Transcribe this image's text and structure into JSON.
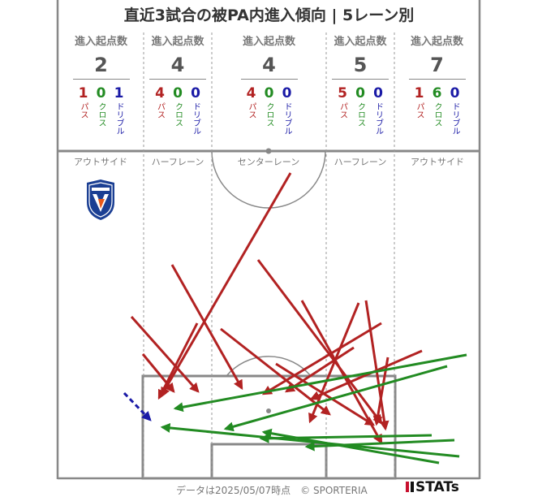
{
  "title": "直近3試合の被PA内進入傾向 | 5レーン別",
  "lanes": [
    {
      "header": "進入起点数",
      "total": "2",
      "pass": "1",
      "cross": "0",
      "dribble": "1",
      "name": "アウトサイド"
    },
    {
      "header": "進入起点数",
      "total": "4",
      "pass": "4",
      "cross": "0",
      "dribble": "0",
      "name": "ハーフレーン"
    },
    {
      "header": "進入起点数",
      "total": "4",
      "pass": "4",
      "cross": "0",
      "dribble": "0",
      "name": "センターレーン"
    },
    {
      "header": "進入起点数",
      "total": "5",
      "pass": "5",
      "cross": "0",
      "dribble": "0",
      "name": "ハーフレーン"
    },
    {
      "header": "進入起点数",
      "total": "7",
      "pass": "1",
      "cross": "6",
      "dribble": "0",
      "name": "アウトサイド"
    }
  ],
  "type_labels": {
    "pass": "パス",
    "cross": "クロス",
    "dribble": "ドリブル"
  },
  "footer": "データは2025/05/07時点　© SPORTERIA",
  "brand": "STATs",
  "crest_icon": "v-varen-nagasaki-crest-icon",
  "colors": {
    "pass": "#b22222",
    "cross": "#228b22",
    "dribble": "#1a1aa6"
  }
}
